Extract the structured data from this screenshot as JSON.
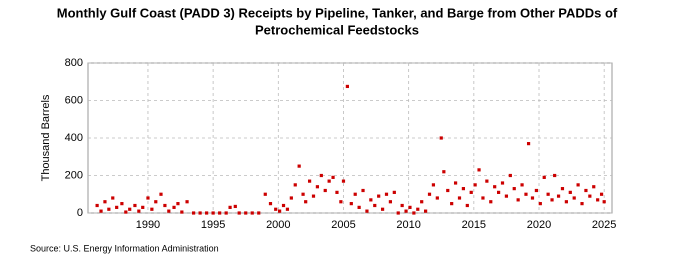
{
  "chart_data": {
    "type": "scatter",
    "title_lines": [
      "Monthly Gulf Coast (PADD 3) Receipts by Pipeline, Tanker, and Barge from Other PADDs of",
      "Petrochemical Feedstocks"
    ],
    "y_label": "Thousand Barrels",
    "source": "Source: U.S. Energy Information Administration",
    "color": "#cc0000",
    "grid": true,
    "xlim": [
      1985.4,
      2025.6
    ],
    "ylim": [
      0,
      800
    ],
    "xticks": [
      1990,
      1995,
      2000,
      2005,
      2010,
      2015,
      2020,
      2025
    ],
    "yticks": [
      0,
      200,
      400,
      600,
      800
    ],
    "x": [
      1986.1,
      1986.4,
      1986.7,
      1987.0,
      1987.3,
      1987.6,
      1988.0,
      1988.3,
      1988.6,
      1989.0,
      1989.3,
      1989.6,
      1990.0,
      1990.3,
      1990.6,
      1991.0,
      1991.3,
      1991.6,
      1992.0,
      1992.3,
      1992.6,
      1993.0,
      1993.5,
      1994.0,
      1994.5,
      1995.0,
      1995.5,
      1996.0,
      1996.3,
      1996.7,
      1997.0,
      1997.5,
      1998.0,
      1998.5,
      1999.0,
      1999.4,
      1999.8,
      2000.1,
      2000.4,
      2000.7,
      2001.0,
      2001.3,
      2001.6,
      2001.9,
      2002.1,
      2002.4,
      2002.7,
      2003.0,
      2003.3,
      2003.6,
      2003.9,
      2004.2,
      2004.5,
      2004.8,
      2005.0,
      2005.3,
      2005.6,
      2005.9,
      2006.2,
      2006.5,
      2006.8,
      2007.1,
      2007.4,
      2007.7,
      2008.0,
      2008.3,
      2008.6,
      2008.9,
      2009.2,
      2009.5,
      2009.8,
      2010.1,
      2010.4,
      2010.7,
      2011.0,
      2011.3,
      2011.6,
      2011.9,
      2012.2,
      2012.5,
      2012.7,
      2013.0,
      2013.3,
      2013.6,
      2013.9,
      2014.2,
      2014.5,
      2014.8,
      2015.1,
      2015.4,
      2015.7,
      2016.0,
      2016.3,
      2016.6,
      2016.9,
      2017.2,
      2017.5,
      2017.8,
      2018.1,
      2018.4,
      2018.7,
      2019.0,
      2019.2,
      2019.5,
      2019.8,
      2020.1,
      2020.4,
      2020.7,
      2021.0,
      2021.2,
      2021.5,
      2021.8,
      2022.1,
      2022.4,
      2022.7,
      2023.0,
      2023.3,
      2023.6,
      2023.9,
      2024.2,
      2024.5,
      2024.8,
      2025.0
    ],
    "values": [
      40,
      10,
      60,
      20,
      80,
      30,
      50,
      5,
      20,
      40,
      10,
      30,
      80,
      20,
      60,
      100,
      40,
      10,
      30,
      50,
      5,
      60,
      0,
      0,
      0,
      0,
      0,
      0,
      30,
      35,
      0,
      0,
      0,
      0,
      100,
      50,
      20,
      10,
      40,
      20,
      80,
      150,
      250,
      100,
      60,
      170,
      90,
      140,
      200,
      120,
      170,
      190,
      110,
      60,
      170,
      675,
      50,
      100,
      30,
      120,
      10,
      70,
      40,
      90,
      20,
      100,
      60,
      110,
      0,
      40,
      10,
      30,
      0,
      20,
      60,
      10,
      100,
      150,
      80,
      400,
      220,
      120,
      50,
      160,
      80,
      130,
      40,
      110,
      150,
      230,
      80,
      170,
      60,
      140,
      110,
      160,
      90,
      200,
      130,
      70,
      150,
      100,
      370,
      80,
      120,
      50,
      190,
      100,
      70,
      200,
      90,
      130,
      60,
      110,
      80,
      150,
      50,
      120,
      90,
      140,
      70,
      100,
      60
    ]
  }
}
